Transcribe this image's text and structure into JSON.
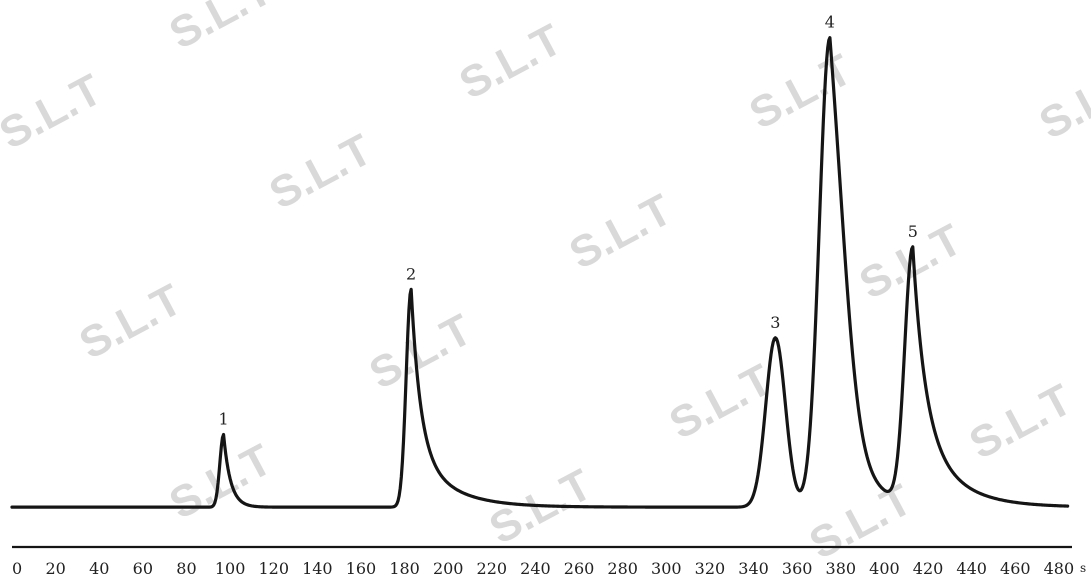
{
  "chart_data": {
    "type": "line",
    "title": "",
    "xlabel": "",
    "ylabel": "",
    "x_unit": "s",
    "xlim": [
      0,
      486
    ],
    "ylim": [
      0,
      100
    ],
    "x_ticks": [
      0,
      20,
      40,
      60,
      80,
      100,
      120,
      140,
      160,
      180,
      200,
      220,
      240,
      260,
      280,
      300,
      320,
      340,
      360,
      380,
      400,
      420,
      440,
      460,
      480
    ],
    "grid": false,
    "legend": "none",
    "baseline": 1.0,
    "peaks": [
      {
        "label": "1",
        "x": 97,
        "y": 16
      },
      {
        "label": "2",
        "x": 183,
        "y": 46
      },
      {
        "label": "3",
        "x": 350,
        "y": 39
      },
      {
        "label": "4",
        "x": 375,
        "y": 100
      },
      {
        "label": "5",
        "x": 413,
        "y": 55
      }
    ],
    "valleys": [
      {
        "x": 360,
        "y": 14
      },
      {
        "x": 402,
        "y": 3
      }
    ]
  },
  "watermark": "S.L.T",
  "colors": {
    "line": "#151515",
    "watermark": "#d9d9d9"
  }
}
